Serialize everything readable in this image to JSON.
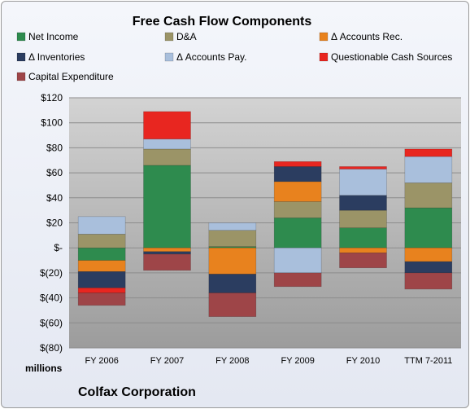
{
  "chart_data": {
    "type": "bar",
    "stacked": true,
    "title": "Free Cash Flow Components",
    "units_label": "millions",
    "footer": "Colfax Corporation",
    "categories": [
      "FY 2006",
      "FY 2007",
      "FY 2008",
      "FY 2009",
      "FY 2010",
      "TTM 7-2011"
    ],
    "ylim": [
      -80,
      120
    ],
    "yticks": [
      {
        "value": 120,
        "label": "$120"
      },
      {
        "value": 100,
        "label": "$100"
      },
      {
        "value": 80,
        "label": "$80"
      },
      {
        "value": 60,
        "label": "$60"
      },
      {
        "value": 40,
        "label": "$40"
      },
      {
        "value": 20,
        "label": "$20"
      },
      {
        "value": 0,
        "label": "$-"
      },
      {
        "value": -20,
        "label": "$(20)"
      },
      {
        "value": -40,
        "label": "$(40)"
      },
      {
        "value": -60,
        "label": "$(60)"
      },
      {
        "value": -80,
        "label": "$(80)"
      }
    ],
    "legend_position": "top",
    "series": [
      {
        "name": "Net Income",
        "color": "#2e8b4e",
        "values": [
          -10,
          66,
          1,
          24,
          16,
          32
        ]
      },
      {
        "name": "D&A",
        "color": "#9b9467",
        "values": [
          11,
          13,
          13,
          13,
          14,
          20
        ]
      },
      {
        "name": "Δ Accounts Rec.",
        "color": "#e8821e",
        "values": [
          -9,
          -3,
          -21,
          16,
          -4,
          -11
        ]
      },
      {
        "name": "Δ Inventories",
        "color": "#2b3d60",
        "values": [
          -13,
          -2,
          -15,
          12,
          12,
          -9
        ]
      },
      {
        "name": "Δ Accounts Pay.",
        "color": "#a9bfdc",
        "values": [
          14,
          8,
          6,
          -20,
          21,
          21
        ]
      },
      {
        "name": "Questionable Cash Sources",
        "color": "#e82620",
        "values": [
          -4,
          22,
          0,
          4,
          2,
          6
        ]
      },
      {
        "name": "Capital Expenditure",
        "color": "#9e4548",
        "values": [
          -10,
          -13,
          -19,
          -11,
          -12,
          -13
        ]
      }
    ]
  }
}
